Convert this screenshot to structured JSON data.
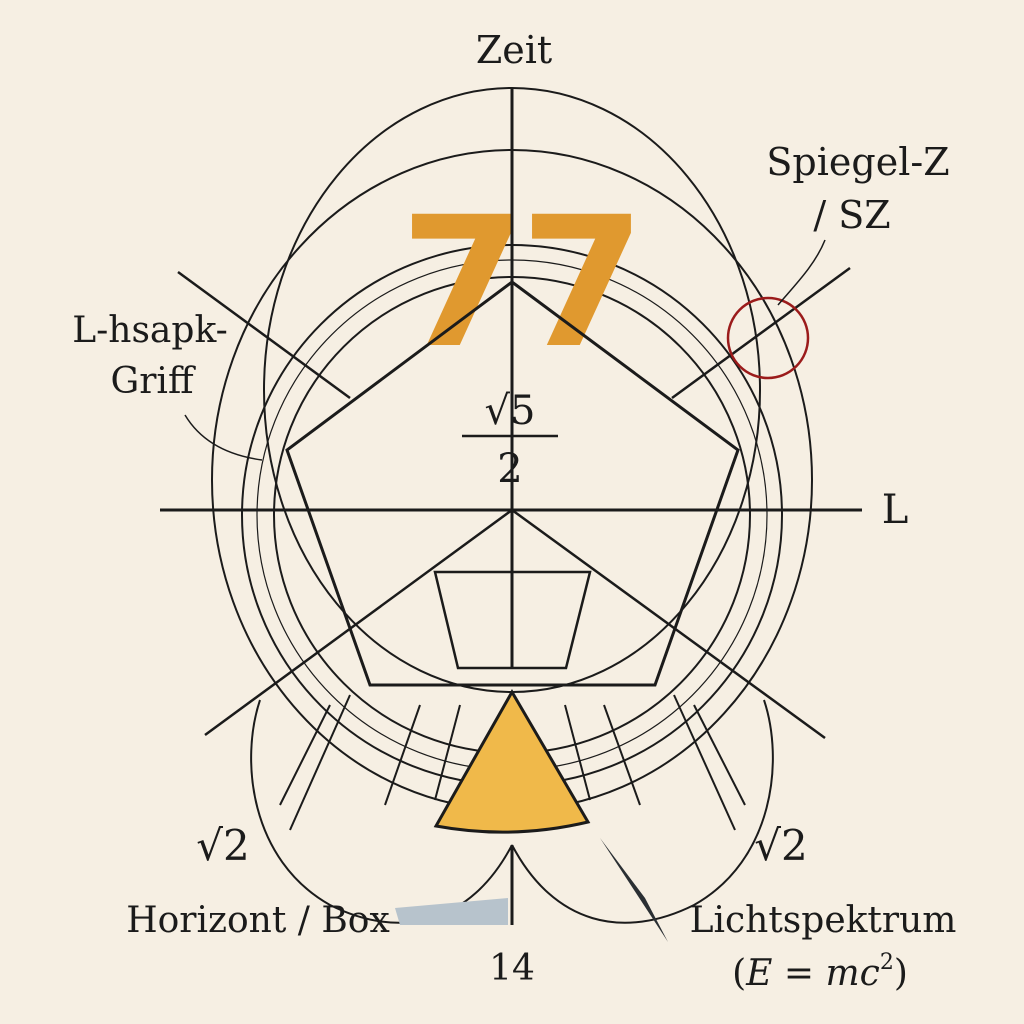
{
  "labels": {
    "top": "Zeit",
    "mirror_line1": "Spiegel-Z",
    "mirror_line2": "/ SZ",
    "grip_line1": "L-hsapk-",
    "grip_line2": "Griff",
    "right_axis": "L",
    "frac_num": "√5",
    "frac_den": "2",
    "sqrt_left": "√2",
    "sqrt_right": "√2",
    "horizon": "Horizont / Box",
    "bottom": "14",
    "spectrum_line1": "Lichtspektrum",
    "spectrum_line2_prefix": "(",
    "spectrum_E": "E",
    "spectrum_eq": " = ",
    "spectrum_mc": "mc",
    "spectrum_exp": "2",
    "spectrum_close": ")",
    "big_numeral_left": "7",
    "big_numeral_right": "7"
  },
  "colors": {
    "ink": "#1b1b1b",
    "gold": "#f0b94a",
    "gold_dark": "#e0992f",
    "mirror_circle": "#9b1b1b",
    "horizon_box": "#b7c3cc",
    "background": "#f6efe3"
  }
}
